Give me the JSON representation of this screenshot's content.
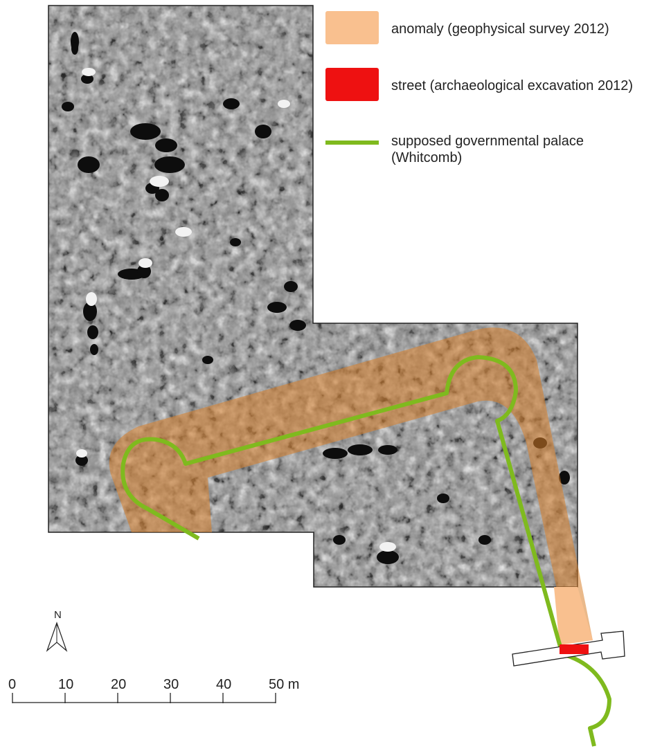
{
  "legend": {
    "anomaly": {
      "label": "anomaly (geophysical survey 2012)",
      "color": "#f9c08f"
    },
    "street": {
      "label": "street (archaeological excavation 2012)",
      "color": "#ee1111"
    },
    "palace": {
      "label_line1": "supposed governmental palace",
      "label_line2": "(Whitcomb)",
      "color": "#7fba1e"
    }
  },
  "north_arrow": {
    "label": "N"
  },
  "scale_bar": {
    "unit": "m",
    "ticks": [
      "0",
      "10",
      "20",
      "30",
      "40",
      "50 m"
    ]
  },
  "colors": {
    "survey_background": "#8c8c8c",
    "anomaly_overlay": "#d9802a",
    "outline": "#222222"
  }
}
